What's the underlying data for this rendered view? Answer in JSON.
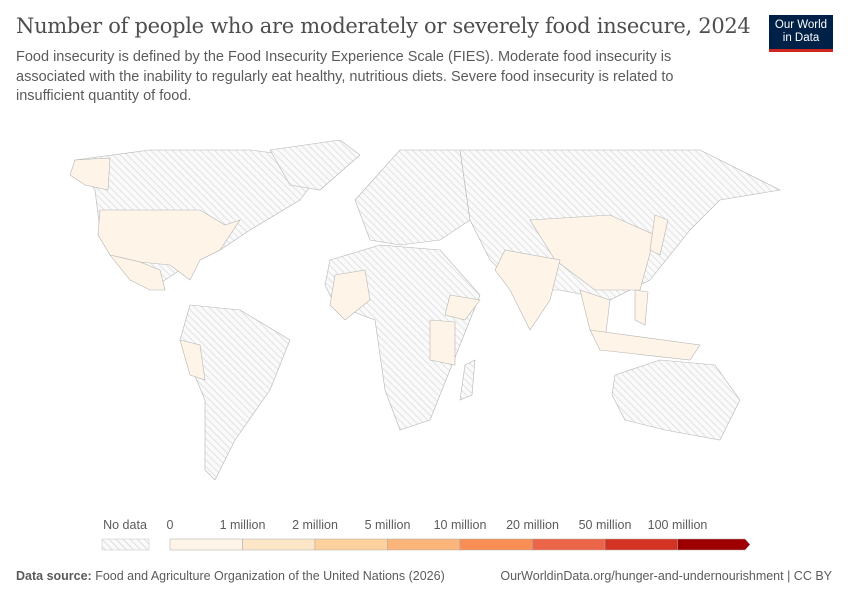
{
  "header": {
    "title": "Number of people who are moderately or severely food insecure, 2024",
    "subtitle": "Food insecurity is defined by the Food Insecurity Experience Scale (FIES). Moderate food insecurity is associated with the inability to regularly eat healthy, nutritious diets. Severe food insecurity is related to insufficient quantity of food.",
    "logo": "Our World in Data"
  },
  "chart_data": {
    "type": "choropleth",
    "year": 2024,
    "legend": {
      "no_data_label": "No data",
      "bins": [
        "0",
        "1 million",
        "2 million",
        "5 million",
        "10 million",
        "20 million",
        "50 million",
        "100 million"
      ],
      "colors": [
        "#fef4e8",
        "#fde6c7",
        "#fcd19c",
        "#fbb47a",
        "#f98e55",
        "#ec6548",
        "#d43324",
        "#9e0000"
      ],
      "no_data_color": "#e9e9e9"
    },
    "countries_with_data_bin": "0–1 million"
  },
  "footer": {
    "source_label": "Data source:",
    "source": "Food and Agriculture Organization of the United Nations (2026)",
    "url": "OurWorldinData.org/hunger-and-undernourishment | CC BY"
  }
}
